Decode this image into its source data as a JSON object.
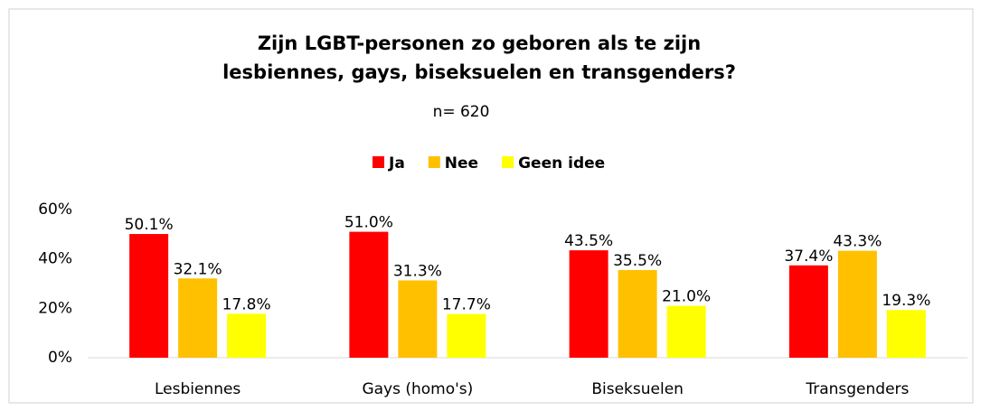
{
  "chart_data": {
    "type": "bar",
    "title": "Zijn LGBT-personen zo geboren als te zijn lesbiennes, gays, biseksuelen en transgenders?",
    "subtitle": "n= 620",
    "categories": [
      "Lesbiennes",
      "Gays (homo's)",
      "Biseksuelen",
      "Transgenders"
    ],
    "series": [
      {
        "name": "Ja",
        "color": "#ff0000",
        "values": [
          50.1,
          51.0,
          43.5,
          37.4
        ],
        "value_labels": [
          "50.1%",
          "51.0%",
          "43.5%",
          "37.4%"
        ]
      },
      {
        "name": "Nee",
        "color": "#ffc000",
        "values": [
          32.1,
          31.3,
          35.5,
          43.3
        ],
        "value_labels": [
          "32.1%",
          "31.3%",
          "35.5%",
          "43.3%"
        ]
      },
      {
        "name": "Geen idee",
        "color": "#ffff00",
        "values": [
          17.8,
          17.7,
          21.0,
          19.3
        ],
        "value_labels": [
          "17.8%",
          "17.7%",
          "21.0%",
          "19.3%"
        ]
      }
    ],
    "ylim": [
      0,
      60
    ],
    "yticks": [
      {
        "value": 0,
        "label": "0%"
      },
      {
        "value": 20,
        "label": "20%"
      },
      {
        "value": 40,
        "label": "40%"
      },
      {
        "value": 60,
        "label": "60%"
      }
    ],
    "grid": false,
    "legend": "top"
  }
}
